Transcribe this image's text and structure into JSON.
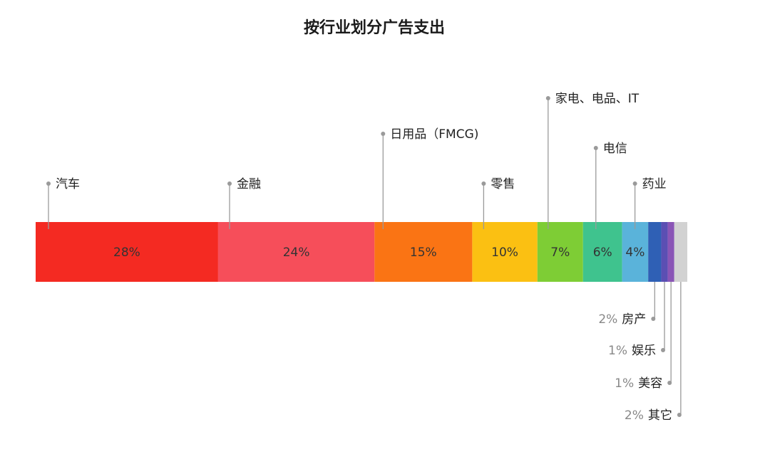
{
  "chart_data": {
    "type": "bar",
    "title": "按行业划分广告支出",
    "stacked": true,
    "orientation": "horizontal",
    "unit": "%",
    "segments": [
      {
        "category": "汽车",
        "value": 28,
        "label": "28%",
        "color": "#f42a22"
      },
      {
        "category": "金融",
        "value": 24,
        "label": "24%",
        "color": "#f64e5a"
      },
      {
        "category": "日用品（FMCG)",
        "value": 15,
        "label": "15%",
        "color": "#fa7414"
      },
      {
        "category": "零售",
        "value": 10,
        "label": "10%",
        "color": "#fbc012"
      },
      {
        "category": "家电、电品、IT",
        "value": 7,
        "label": "7%",
        "color": "#7ecd35"
      },
      {
        "category": "电信",
        "value": 6,
        "label": "6%",
        "color": "#3fc38e"
      },
      {
        "category": "药业",
        "value": 4,
        "label": "4%",
        "color": "#5ab3da"
      },
      {
        "category": "房产",
        "value": 2,
        "label": "2%",
        "color": "#2f60b5"
      },
      {
        "category": "娱乐",
        "value": 1,
        "label": "1%",
        "color": "#5b4fb3"
      },
      {
        "category": "美容",
        "value": 1,
        "label": "1%",
        "color": "#8a55b6"
      },
      {
        "category": "其它",
        "value": 2,
        "label": "2%",
        "color": "#d2d2d2"
      }
    ]
  }
}
